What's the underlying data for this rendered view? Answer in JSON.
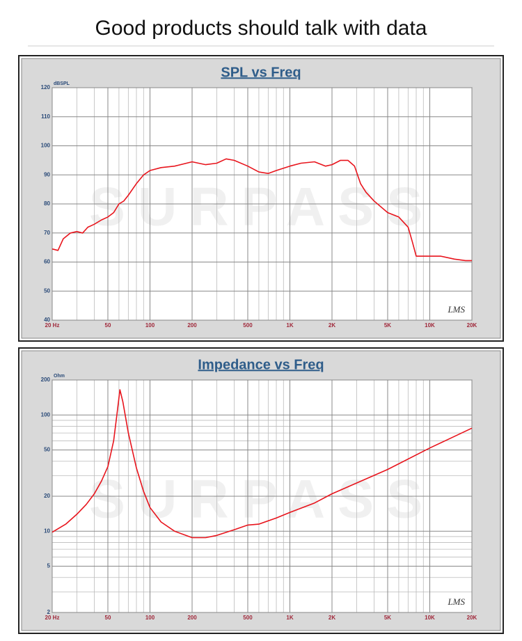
{
  "header": {
    "title": "Good products should talk with data"
  },
  "chart_data": [
    {
      "type": "line",
      "title": "SPL vs Freq",
      "y_label": "dBSPL",
      "watermark": "SURPASS",
      "logo": "LMS",
      "x_log": true,
      "y_log": false,
      "grid": true,
      "color": "#e8141c",
      "x": [
        20,
        22,
        24,
        27,
        30,
        33,
        36,
        40,
        45,
        50,
        55,
        60,
        65,
        70,
        80,
        90,
        100,
        120,
        150,
        200,
        250,
        300,
        350,
        400,
        500,
        600,
        700,
        800,
        1000,
        1200,
        1500,
        1800,
        2000,
        2300,
        2600,
        2900,
        3200,
        3500,
        4000,
        5000,
        6000,
        7000,
        7500,
        8000,
        10000,
        12000,
        15000,
        18000,
        20000
      ],
      "values": [
        64.5,
        64,
        68,
        70,
        70.5,
        70,
        72,
        73,
        74.5,
        75.5,
        77,
        80,
        81,
        83,
        87,
        90,
        91.5,
        92.5,
        93,
        94.5,
        93.5,
        94,
        95.5,
        95,
        93,
        91,
        90.5,
        91.5,
        93,
        94,
        94.5,
        93,
        93.5,
        95,
        95,
        93,
        87,
        84,
        81,
        77,
        75.5,
        72,
        67,
        62,
        62,
        62,
        61,
        60.5,
        60.5
      ],
      "xlim": [
        20,
        20000
      ],
      "xticks": [
        {
          "value": 20,
          "label": "20 Hz"
        },
        50,
        100,
        200,
        500,
        {
          "value": 1000,
          "label": "1K"
        },
        {
          "value": 2000,
          "label": "2K"
        },
        {
          "value": 5000,
          "label": "5K"
        },
        {
          "value": 10000,
          "label": "10K"
        },
        {
          "value": 20000,
          "label": "20K"
        }
      ],
      "xminor": [
        30,
        40,
        60,
        70,
        80,
        90,
        300,
        400,
        600,
        700,
        800,
        900,
        3000,
        4000,
        6000,
        7000,
        8000,
        9000
      ],
      "ylim": [
        40,
        120
      ],
      "yticks": [
        40,
        50,
        60,
        70,
        80,
        90,
        100,
        110,
        120
      ],
      "yminor": []
    },
    {
      "type": "line",
      "title": "Impedance vs Freq",
      "y_label": "Ohm",
      "watermark": "SURPASS",
      "logo": "LMS",
      "x_log": true,
      "y_log": true,
      "grid": true,
      "color": "#e8141c",
      "x": [
        20,
        25,
        30,
        35,
        40,
        45,
        50,
        55,
        58,
        61,
        64,
        70,
        80,
        90,
        100,
        120,
        150,
        200,
        250,
        300,
        400,
        500,
        600,
        800,
        1000,
        1500,
        2000,
        3000,
        5000,
        10000,
        20000
      ],
      "values": [
        9.8,
        11.5,
        14,
        17,
        21,
        27,
        36,
        60,
        100,
        165,
        130,
        70,
        35,
        22,
        16,
        12,
        10,
        8.8,
        8.8,
        9.2,
        10.3,
        11.3,
        11.5,
        13,
        14.5,
        17.5,
        21,
        26,
        34,
        52,
        77
      ],
      "xlim": [
        20,
        20000
      ],
      "xticks": [
        {
          "value": 20,
          "label": "20 Hz"
        },
        50,
        100,
        200,
        500,
        {
          "value": 1000,
          "label": "1K"
        },
        {
          "value": 2000,
          "label": "2K"
        },
        {
          "value": 5000,
          "label": "5K"
        },
        {
          "value": 10000,
          "label": "10K"
        },
        {
          "value": 20000,
          "label": "20K"
        }
      ],
      "xminor": [
        30,
        40,
        60,
        70,
        80,
        90,
        300,
        400,
        600,
        700,
        800,
        900,
        3000,
        4000,
        6000,
        7000,
        8000,
        9000
      ],
      "ylim": [
        2,
        200
      ],
      "yticks": [
        2,
        5,
        10,
        20,
        50,
        100,
        200
      ],
      "yminor": [
        3,
        4,
        6,
        7,
        8,
        9,
        30,
        40,
        60,
        70,
        80,
        90
      ]
    }
  ]
}
